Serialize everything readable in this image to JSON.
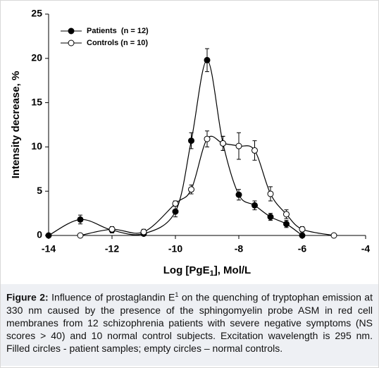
{
  "chart_data": {
    "type": "line",
    "xlabel": {
      "text": "Log [PgE",
      "sub": "1",
      "rest": "], Mol/L"
    },
    "ylabel": "Intensity decrease, %",
    "xlim": [
      -14,
      -4
    ],
    "xticks": [
      -14,
      -12,
      -10,
      -8,
      -6,
      -4
    ],
    "ylim": [
      0,
      25
    ],
    "yticks": [
      0,
      5,
      10,
      15,
      20,
      25
    ],
    "legend": "top-left",
    "series": [
      {
        "name": "Patients  (n = 12)",
        "color": "#000000",
        "marker": "filled",
        "x": [
          -14,
          -13,
          -12,
          -11,
          -10,
          -9.5,
          -9,
          -8.5,
          -8,
          -7.5,
          -7,
          -6.5,
          -6
        ],
        "values": [
          0,
          1.8,
          0.6,
          0.2,
          2.7,
          10.7,
          19.8,
          10.4,
          4.6,
          3.4,
          2.1,
          1.3,
          0
        ],
        "errors": [
          null,
          0.5,
          0.3,
          null,
          0.6,
          0.9,
          1.3,
          0.8,
          0.6,
          0.5,
          0.4,
          0.4,
          null
        ]
      },
      {
        "name": "Controls (n = 10)",
        "color": "#000000",
        "marker": "open",
        "x": [
          -13,
          -12,
          -11,
          -10,
          -9.5,
          -9,
          -8.5,
          -8,
          -7.5,
          -7,
          -6.5,
          -6,
          -5
        ],
        "values": [
          0,
          0.7,
          0.4,
          3.6,
          5.2,
          10.9,
          10.4,
          10.1,
          9.6,
          4.7,
          2.4,
          0.7,
          0
        ],
        "errors": [
          null,
          0.3,
          0.3,
          0.3,
          0.5,
          0.9,
          0.8,
          1.5,
          1.1,
          0.8,
          0.5,
          0.3,
          null
        ]
      }
    ]
  },
  "caption": {
    "label": "Figure 2:",
    "text1": " Influence of prostaglandin E",
    "sup": "1",
    "text2": " on the quenching of tryptophan emission at 330 nm caused by the presence of the sphingomyelin probe ASM in red cell membranes from 12 schizophrenia patients with severe negative symptoms (NS scores > 40) and 10 normal control subjects. Excitation wavelength is 295 nm. Filled circles - patient samples; empty circles – normal controls."
  }
}
